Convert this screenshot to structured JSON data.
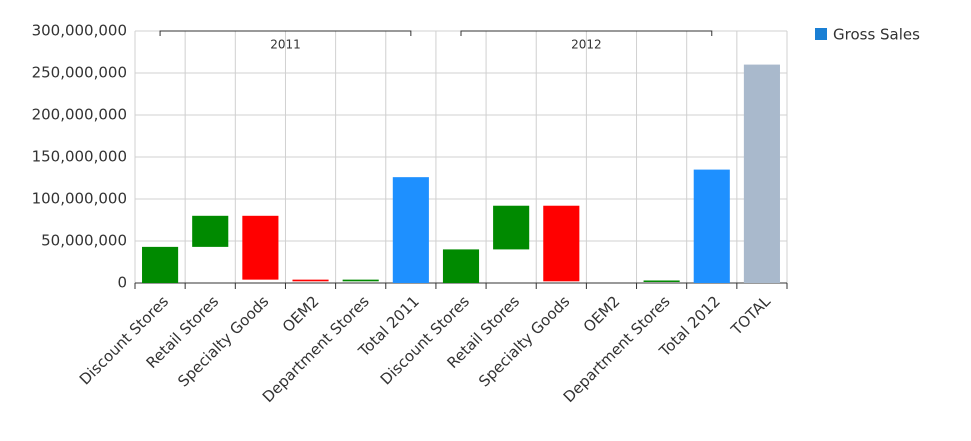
{
  "chart_data": {
    "type": "waterfall",
    "categories": [
      "Discount Stores",
      "Retail Stores",
      "Specialty Goods",
      "OEM2",
      "Department Stores",
      "Total 2011",
      "Discount Stores",
      "Retail Stores",
      "Specialty Goods",
      "OEM2",
      "Department Stores",
      "Total 2012",
      "TOTAL"
    ],
    "x_groups": [
      {
        "label": "2011",
        "size": 6
      },
      {
        "label": "2012",
        "size": 6
      }
    ],
    "series": [
      {
        "name": "Gross Sales",
        "color": "#1a7fd4",
        "values": [
          43000000,
          37000000,
          -76000000,
          -2000000,
          2000000,
          126000000,
          40000000,
          52000000,
          -90000000,
          0,
          1000000,
          135000000,
          260000000
        ],
        "kinds": [
          "delta",
          "delta",
          "delta",
          "delta",
          "delta",
          "total",
          "delta",
          "delta",
          "delta",
          "delta",
          "delta",
          "total",
          "grand-total"
        ]
      }
    ],
    "colors": {
      "increase": "#008a00",
      "decrease": "#ff0000",
      "total": "#1e90ff",
      "grand-total": "#a9b9cc"
    },
    "ylim": [
      0,
      300000000
    ],
    "yticks": [
      0,
      {
        "value": 50000000,
        "label": "50,000,000"
      },
      {
        "value": 100000000,
        "label": "100,000,000"
      },
      {
        "value": 150000000,
        "label": "150,000,000"
      },
      {
        "value": 200000000,
        "label": "200,000,000"
      },
      {
        "value": 250000000,
        "label": "250,000,000"
      },
      {
        "value": 300000000,
        "label": "300,000,000"
      }
    ],
    "grid": true,
    "legend": "top-right"
  }
}
